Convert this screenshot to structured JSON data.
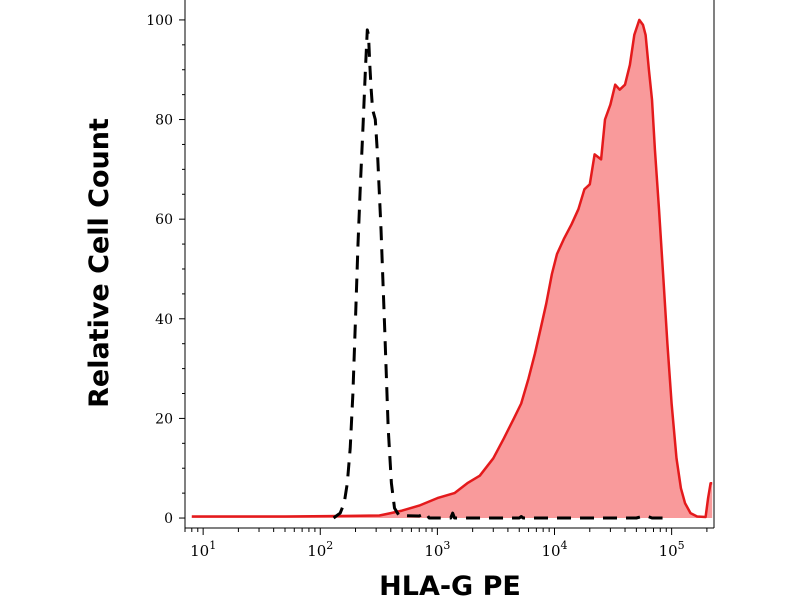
{
  "chart_data": {
    "type": "area",
    "xlabel": "HLA-G PE",
    "ylabel": "Relative Cell Count",
    "x_scale": "log",
    "xlim": [
      7,
      230000
    ],
    "ylim": [
      -2,
      104
    ],
    "y_ticks": [
      0,
      20,
      40,
      60,
      80,
      100
    ],
    "y_tick_labels": [
      "0",
      "20",
      "40",
      "60",
      "80",
      "100"
    ],
    "x_ticks": [
      {
        "value": 10,
        "base": "10",
        "exp": "1"
      },
      {
        "value": 100,
        "base": "10",
        "exp": "2"
      },
      {
        "value": 1000,
        "base": "10",
        "exp": "3"
      },
      {
        "value": 10000,
        "base": "10",
        "exp": "4"
      },
      {
        "value": 100000,
        "base": "10",
        "exp": "5"
      }
    ],
    "grid": false,
    "legend": "none",
    "series": [
      {
        "style": "dashed",
        "color": "#000000",
        "points": [
          [
            130,
            0
          ],
          [
            148,
            1
          ],
          [
            160,
            3
          ],
          [
            170,
            7
          ],
          [
            180,
            14
          ],
          [
            190,
            25
          ],
          [
            200,
            40
          ],
          [
            210,
            55
          ],
          [
            220,
            67
          ],
          [
            232,
            79
          ],
          [
            243,
            90
          ],
          [
            252,
            98
          ],
          [
            258,
            97
          ],
          [
            265,
            91
          ],
          [
            272,
            86
          ],
          [
            280,
            82
          ],
          [
            295,
            80
          ],
          [
            310,
            72
          ],
          [
            330,
            58
          ],
          [
            355,
            38
          ],
          [
            380,
            18
          ],
          [
            405,
            7
          ],
          [
            430,
            2
          ],
          [
            470,
            0.5
          ],
          [
            700,
            0.4
          ],
          [
            800,
            1
          ],
          [
            850,
            0
          ],
          [
            1300,
            0
          ],
          [
            1350,
            1
          ],
          [
            1400,
            0
          ],
          [
            5000,
            0
          ],
          [
            5200,
            0.3
          ],
          [
            5400,
            0
          ],
          [
            50000,
            0
          ],
          [
            56000,
            0.3
          ],
          [
            63000,
            0.3
          ],
          [
            68000,
            0
          ],
          [
            90000,
            0
          ]
        ]
      },
      {
        "style": "solid-filled",
        "color": "#e41a1c",
        "fill": "#f99a9b",
        "points": [
          [
            8,
            0.3
          ],
          [
            50,
            0.3
          ],
          [
            150,
            0.4
          ],
          [
            320,
            0.5
          ],
          [
            400,
            1
          ],
          [
            500,
            1.5
          ],
          [
            700,
            2.5
          ],
          [
            1000,
            4
          ],
          [
            1400,
            5
          ],
          [
            1800,
            7
          ],
          [
            2300,
            8.5
          ],
          [
            3000,
            12
          ],
          [
            3700,
            16
          ],
          [
            4500,
            20
          ],
          [
            5200,
            23
          ],
          [
            6000,
            28
          ],
          [
            6800,
            33
          ],
          [
            7600,
            38
          ],
          [
            8500,
            43
          ],
          [
            9500,
            49
          ],
          [
            10500,
            53
          ],
          [
            12000,
            56
          ],
          [
            14000,
            59
          ],
          [
            16000,
            62
          ],
          [
            18000,
            66
          ],
          [
            20000,
            67
          ],
          [
            22000,
            73
          ],
          [
            25000,
            72
          ],
          [
            27000,
            80
          ],
          [
            30000,
            83
          ],
          [
            33000,
            87
          ],
          [
            36000,
            86
          ],
          [
            40000,
            87
          ],
          [
            44000,
            91
          ],
          [
            48000,
            97
          ],
          [
            53000,
            100
          ],
          [
            57000,
            99
          ],
          [
            60000,
            97
          ],
          [
            64000,
            90
          ],
          [
            68000,
            84
          ],
          [
            72000,
            74
          ],
          [
            78000,
            62
          ],
          [
            85000,
            48
          ],
          [
            92000,
            35
          ],
          [
            100000,
            23
          ],
          [
            110000,
            12
          ],
          [
            120000,
            6
          ],
          [
            130000,
            3
          ],
          [
            145000,
            1
          ],
          [
            165000,
            0.3
          ],
          [
            195000,
            0.2
          ],
          [
            205000,
            4
          ],
          [
            215000,
            7
          ],
          [
            222000,
            7
          ]
        ]
      }
    ]
  }
}
